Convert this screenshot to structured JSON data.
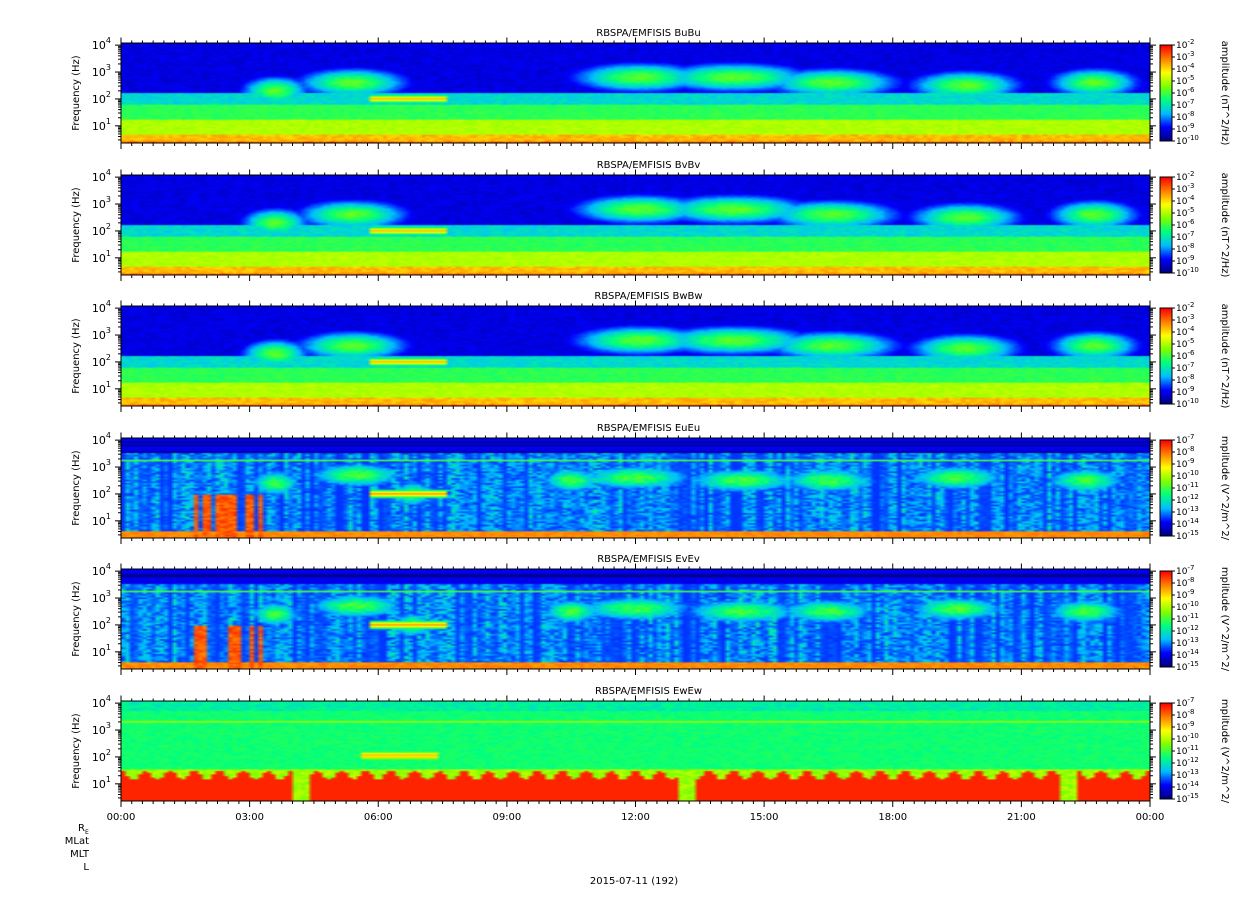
{
  "figure": {
    "date_label": "2015-07-11 (192)",
    "ephemeris_labels": [
      "R",
      "MLat",
      "MLT",
      "L"
    ],
    "ephemeris_subscript": "E"
  },
  "chart_data": [
    {
      "type": "heatmap",
      "title": "RBSPA/EMFISIS  BuBu",
      "ylabel": "Frequency (Hz)",
      "yscale": "log",
      "ylim": [
        2.3,
        12000
      ],
      "ytick_exponents": [
        1,
        2,
        3,
        4
      ],
      "xlim_hours": [
        0,
        24
      ],
      "xtick_labels": [
        "00:00",
        "03:00",
        "06:00",
        "09:00",
        "12:00",
        "15:00",
        "18:00",
        "21:00",
        "00:00"
      ],
      "colorbar": {
        "label": "amplitude (nT^2/Hz)",
        "exponents": [
          -2,
          -3,
          -4,
          -5,
          -6,
          -7,
          -8,
          -9,
          -10
        ]
      },
      "colormap": [
        "#00007f",
        "#0000ff",
        "#00bfff",
        "#00ff7f",
        "#7fff00",
        "#ffff00",
        "#ff7f00",
        "#ff0000"
      ],
      "kind": "B"
    },
    {
      "type": "heatmap",
      "title": "RBSPA/EMFISIS  BvBv",
      "ylabel": "Frequency (Hz)",
      "yscale": "log",
      "ylim": [
        2.3,
        12000
      ],
      "ytick_exponents": [
        1,
        2,
        3,
        4
      ],
      "xlim_hours": [
        0,
        24
      ],
      "xtick_labels": [
        "00:00",
        "03:00",
        "06:00",
        "09:00",
        "12:00",
        "15:00",
        "18:00",
        "21:00",
        "00:00"
      ],
      "colorbar": {
        "label": "amplitude (nT^2/Hz)",
        "exponents": [
          -2,
          -3,
          -4,
          -5,
          -6,
          -7,
          -8,
          -9,
          -10
        ]
      },
      "colormap": [
        "#00007f",
        "#0000ff",
        "#00bfff",
        "#00ff7f",
        "#7fff00",
        "#ffff00",
        "#ff7f00",
        "#ff0000"
      ],
      "kind": "B"
    },
    {
      "type": "heatmap",
      "title": "RBSPA/EMFISIS  BwBw",
      "ylabel": "Frequency (Hz)",
      "yscale": "log",
      "ylim": [
        2.3,
        12000
      ],
      "ytick_exponents": [
        1,
        2,
        3,
        4
      ],
      "xlim_hours": [
        0,
        24
      ],
      "xtick_labels": [
        "00:00",
        "03:00",
        "06:00",
        "09:00",
        "12:00",
        "15:00",
        "18:00",
        "21:00",
        "00:00"
      ],
      "colorbar": {
        "label": "amplitude (nT^2/Hz)",
        "exponents": [
          -2,
          -3,
          -4,
          -5,
          -6,
          -7,
          -8,
          -9,
          -10
        ]
      },
      "colormap": [
        "#00007f",
        "#0000ff",
        "#00bfff",
        "#00ff7f",
        "#7fff00",
        "#ffff00",
        "#ff7f00",
        "#ff0000"
      ],
      "kind": "B"
    },
    {
      "type": "heatmap",
      "title": "RBSPA/EMFISIS  EuEu",
      "ylabel": "Frequency (Hz)",
      "yscale": "log",
      "ylim": [
        2.3,
        12000
      ],
      "ytick_exponents": [
        1,
        2,
        3,
        4
      ],
      "xlim_hours": [
        0,
        24
      ],
      "xtick_labels": [
        "00:00",
        "03:00",
        "06:00",
        "09:00",
        "12:00",
        "15:00",
        "18:00",
        "21:00",
        "00:00"
      ],
      "colorbar": {
        "label": "mplitude (V^2/m^2/",
        "exponents": [
          -7,
          -8,
          -9,
          -10,
          -11,
          -12,
          -13,
          -14,
          -15
        ]
      },
      "colormap": [
        "#00007f",
        "#0000ff",
        "#00bfff",
        "#00ff7f",
        "#7fff00",
        "#ffff00",
        "#ff7f00",
        "#ff0000"
      ],
      "kind": "E"
    },
    {
      "type": "heatmap",
      "title": "RBSPA/EMFISIS  EvEv",
      "ylabel": "Frequency (Hz)",
      "yscale": "log",
      "ylim": [
        2.3,
        12000
      ],
      "ytick_exponents": [
        1,
        2,
        3,
        4
      ],
      "xlim_hours": [
        0,
        24
      ],
      "xtick_labels": [
        "00:00",
        "03:00",
        "06:00",
        "09:00",
        "12:00",
        "15:00",
        "18:00",
        "21:00",
        "00:00"
      ],
      "colorbar": {
        "label": "mplitude (V^2/m^2/",
        "exponents": [
          -7,
          -8,
          -9,
          -10,
          -11,
          -12,
          -13,
          -14,
          -15
        ]
      },
      "colormap": [
        "#00007f",
        "#0000ff",
        "#00bfff",
        "#00ff7f",
        "#7fff00",
        "#ffff00",
        "#ff7f00",
        "#ff0000"
      ],
      "kind": "E"
    },
    {
      "type": "heatmap",
      "title": "RBSPA/EMFISIS  EwEw",
      "ylabel": "Frequency (Hz)",
      "yscale": "log",
      "ylim": [
        2.3,
        12000
      ],
      "ytick_exponents": [
        1,
        2,
        3,
        4
      ],
      "xlim_hours": [
        0,
        24
      ],
      "xtick_labels": [
        "00:00",
        "03:00",
        "06:00",
        "09:00",
        "12:00",
        "15:00",
        "18:00",
        "21:00",
        "00:00"
      ],
      "colorbar": {
        "label": "mplitude (V^2/m^2/",
        "exponents": [
          -7,
          -8,
          -9,
          -10,
          -11,
          -12,
          -13,
          -14,
          -15
        ]
      },
      "colormap": [
        "#00007f",
        "#0000ff",
        "#00bfff",
        "#00ff7f",
        "#7fff00",
        "#ffff00",
        "#ff7f00",
        "#ff0000"
      ],
      "kind": "Ew"
    }
  ]
}
